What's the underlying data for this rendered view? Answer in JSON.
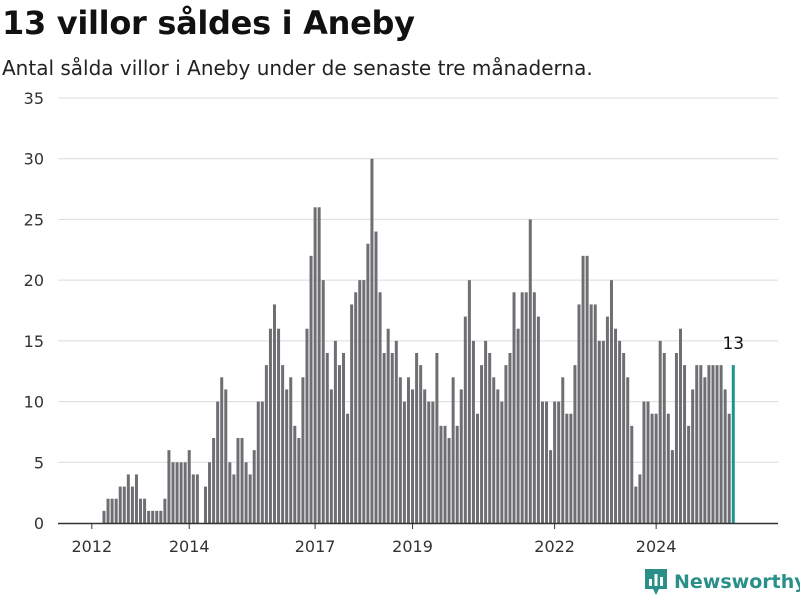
{
  "header": {
    "title": "13 villor såldes i Aneby",
    "subtitle": "Antal sålda villor i Aneby under de senaste tre månaderna."
  },
  "brand": {
    "name": "Newsworthy"
  },
  "colors": {
    "bar": "#6f6e73",
    "highlight": "#1a968d",
    "grid": "#dcdcdc",
    "axis": "#333333",
    "brand": "#2a8f88"
  },
  "chart_data": {
    "type": "bar",
    "title": "13 villor såldes i Aneby",
    "subtitle": "Antal sålda villor i Aneby under de senaste tre månaderna.",
    "xlabel": "",
    "ylabel": "",
    "ylim": [
      0,
      35
    ],
    "yticks": [
      0,
      5,
      10,
      15,
      20,
      25,
      30,
      35
    ],
    "xticks": [
      "2012",
      "2014",
      "2017",
      "2019",
      "2022",
      "2024"
    ],
    "xtick_positions": [
      "2012-06",
      "2014-06",
      "2017-01",
      "2019-01",
      "2021-12",
      "2024-01"
    ],
    "grid": true,
    "start_month": "2012-01",
    "values": [
      0,
      0,
      0,
      0,
      0,
      0,
      0,
      0,
      1,
      2,
      2,
      2,
      3,
      3,
      4,
      3,
      4,
      2,
      2,
      1,
      1,
      1,
      1,
      2,
      6,
      5,
      5,
      5,
      5,
      6,
      4,
      4,
      0,
      3,
      5,
      7,
      10,
      12,
      11,
      5,
      4,
      7,
      7,
      5,
      4,
      6,
      10,
      10,
      13,
      16,
      18,
      16,
      13,
      11,
      12,
      8,
      7,
      12,
      16,
      22,
      26,
      26,
      20,
      14,
      11,
      15,
      13,
      14,
      9,
      18,
      19,
      20,
      20,
      23,
      30,
      24,
      19,
      14,
      16,
      14,
      15,
      12,
      10,
      12,
      11,
      14,
      13,
      11,
      10,
      10,
      14,
      8,
      8,
      7,
      12,
      8,
      11,
      17,
      20,
      15,
      9,
      13,
      15,
      14,
      12,
      11,
      10,
      13,
      14,
      19,
      16,
      19,
      19,
      25,
      19,
      17,
      10,
      10,
      6,
      10,
      10,
      12,
      9,
      9,
      13,
      18,
      22,
      22,
      18,
      18,
      15,
      15,
      17,
      20,
      16,
      15,
      14,
      12,
      8,
      3,
      4,
      10,
      10,
      9,
      9,
      15,
      14,
      9,
      6,
      14,
      16,
      13,
      8,
      11,
      13,
      13,
      12,
      13,
      13,
      13,
      13,
      11,
      9,
      13
    ],
    "highlight_last": true,
    "annotations": [
      {
        "label": "13",
        "target": "last-bar"
      }
    ]
  }
}
